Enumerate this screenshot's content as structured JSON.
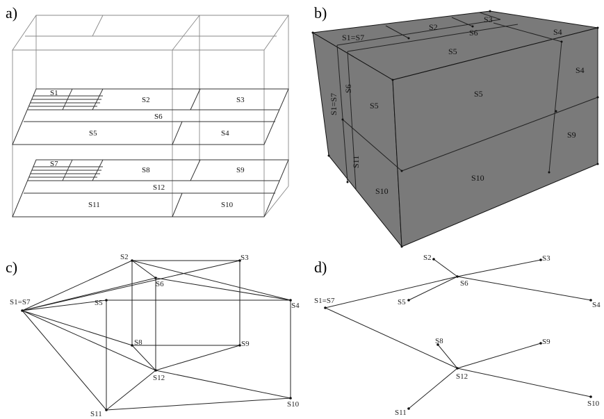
{
  "panels": {
    "a": {
      "letter": "a)",
      "upper": {
        "s1": "S1",
        "s2": "S2",
        "s3": "S3",
        "s6": "S6",
        "s5": "S5",
        "s4": "S4"
      },
      "lower": {
        "s7": "S7",
        "s8": "S8",
        "s9": "S9",
        "s12": "S12",
        "s11": "S11",
        "s10": "S10"
      }
    },
    "b": {
      "letter": "b)",
      "labels": {
        "s3": "S3",
        "s2": "S2",
        "s1s7_top": "S1=S7",
        "s6_top": "S6",
        "s4_top": "S4",
        "s5_top": "S5",
        "s5_front": "S5",
        "s4_right": "S4",
        "s1s7_side": "S1=S7",
        "s6_side": "S6",
        "s5_side": "S5",
        "s9": "S9",
        "s11": "S11",
        "s10_side": "S10",
        "s10_front": "S10"
      }
    },
    "c": {
      "letter": "c)",
      "nodes": {
        "s2": "S2",
        "s3": "S3",
        "s6": "S6",
        "s1s7": "S1=S7",
        "s5": "S5",
        "s4": "S4",
        "s8": "S8",
        "s9": "S9",
        "s12": "S12",
        "s10": "S10",
        "s11": "S11"
      }
    },
    "d": {
      "letter": "d)",
      "nodes": {
        "s2": "S2",
        "s3": "S3",
        "s1s7": "S1=S7",
        "s6": "S6",
        "s5": "S5",
        "s4": "S4",
        "s8": "S8",
        "s9": "S9",
        "s12": "S12",
        "s11": "S11",
        "s10": "S10"
      }
    }
  },
  "colors": {
    "solid_face": "#7a7a7a",
    "line": "#222222"
  }
}
